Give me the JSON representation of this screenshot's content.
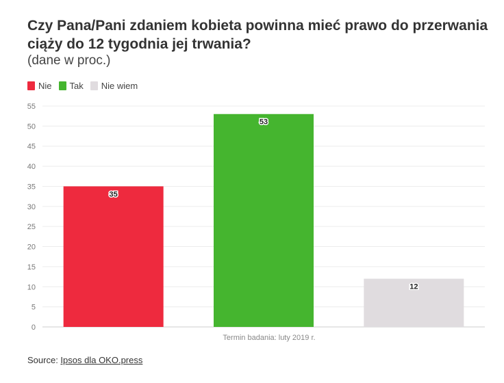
{
  "header": {
    "title": "Czy Pana/Pani zdaniem kobieta powinna mieć prawo do przerwania ciąży do 12 tygodnia jej trwania?",
    "subtitle": "(dane w proc.)"
  },
  "legend": [
    {
      "label": "Nie",
      "color": "#ee2a3e"
    },
    {
      "label": "Tak",
      "color": "#45b52f"
    },
    {
      "label": "Nie wiem",
      "color": "#e0dcdf"
    }
  ],
  "chart_data": {
    "type": "bar",
    "categories": [
      "Nie",
      "Tak",
      "Nie wiem"
    ],
    "values": [
      35,
      53,
      12
    ],
    "colors": [
      "#ee2a3e",
      "#45b52f",
      "#e0dcdf"
    ],
    "xlabel": "Termin badania: luty 2019 r.",
    "ylim": [
      0,
      55
    ],
    "yticks": [
      0,
      5,
      10,
      15,
      20,
      25,
      30,
      35,
      40,
      45,
      50,
      55
    ],
    "grid": true,
    "legend_position": "top-left"
  },
  "footer": {
    "source_prefix": "Source: ",
    "source_link": "Ipsos dla OKO.press"
  }
}
